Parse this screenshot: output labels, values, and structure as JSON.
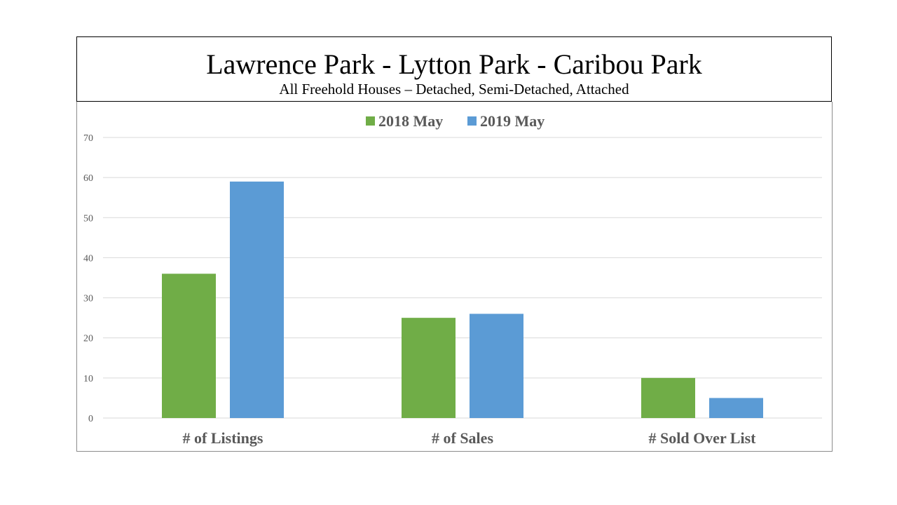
{
  "header": {
    "title": "Lawrence Park - Lytton Park - Caribou Park",
    "subtitle": "All Freehold Houses – Detached, Semi-Detached, Attached"
  },
  "chart_data": {
    "type": "bar",
    "title": "Lawrence Park - Lytton Park - Caribou Park",
    "subtitle": "All Freehold Houses – Detached, Semi-Detached, Attached",
    "categories": [
      "# of Listings",
      "# of Sales",
      "# Sold Over List"
    ],
    "series": [
      {
        "name": "2018 May",
        "values": [
          36,
          25,
          10
        ],
        "color": "#70ad47"
      },
      {
        "name": "2019 May",
        "values": [
          59,
          26,
          5
        ],
        "color": "#5b9bd5"
      }
    ],
    "ylim": [
      0,
      70
    ],
    "yticks": [
      0,
      10,
      20,
      30,
      40,
      50,
      60,
      70
    ],
    "xlabel": "",
    "ylabel": "",
    "grid": true,
    "legend": "top-center"
  }
}
